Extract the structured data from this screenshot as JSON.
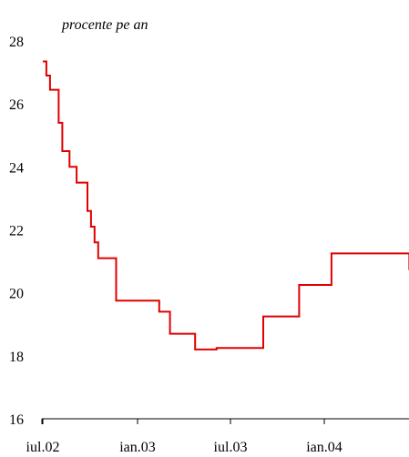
{
  "chart_data": {
    "type": "line",
    "unit_label": "procente pe an",
    "x_ticks": [
      "iul.02",
      "ian.03",
      "iul.03",
      "ian.04"
    ],
    "ylim": [
      16,
      28
    ],
    "y_ticks": [
      "16",
      "18",
      "20",
      "22",
      "24",
      "26",
      "28"
    ],
    "grid": false,
    "line_color": "#e00000",
    "series": [
      {
        "step": "post",
        "points": [
          [
            "2002-07-01",
            27.35
          ],
          [
            "2002-07-08",
            26.9
          ],
          [
            "2002-07-15",
            26.45
          ],
          [
            "2002-08-01",
            25.4
          ],
          [
            "2002-08-08",
            24.5
          ],
          [
            "2002-08-22",
            24.0
          ],
          [
            "2002-09-05",
            23.5
          ],
          [
            "2002-09-26",
            22.6
          ],
          [
            "2002-10-03",
            22.1
          ],
          [
            "2002-10-10",
            21.6
          ],
          [
            "2002-10-17",
            21.1
          ],
          [
            "2002-11-21",
            19.75
          ],
          [
            "2003-02-13",
            19.4
          ],
          [
            "2003-03-06",
            18.7
          ],
          [
            "2003-04-24",
            18.2
          ],
          [
            "2003-06-05",
            18.25
          ],
          [
            "2003-09-04",
            19.25
          ],
          [
            "2003-11-13",
            20.25
          ],
          [
            "2004-01-15",
            21.25
          ],
          [
            "2004-06-15",
            20.75
          ],
          [
            "2004-07-06",
            20.75
          ]
        ]
      }
    ]
  }
}
